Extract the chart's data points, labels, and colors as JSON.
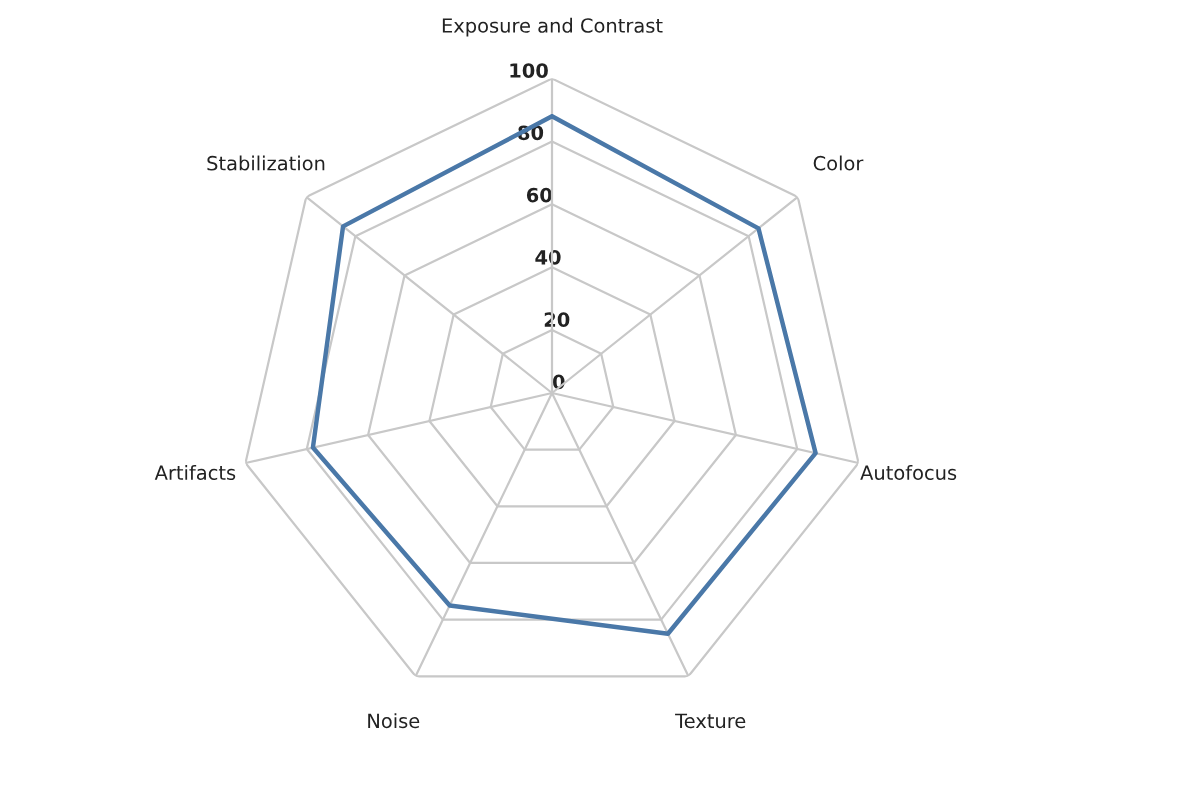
{
  "chart_data": {
    "type": "radar",
    "categories": [
      "Exposure and Contrast",
      "Color",
      "Autofocus",
      "Texture",
      "Noise",
      "Artifacts",
      "Stabilization"
    ],
    "series": [
      {
        "color": "#4a78a8",
        "values": [
          88,
          84,
          86,
          85,
          75,
          78,
          85
        ]
      }
    ],
    "ylim": [
      0,
      100
    ],
    "yticks": [
      0,
      20,
      40,
      60,
      80,
      100
    ],
    "grid": true
  }
}
